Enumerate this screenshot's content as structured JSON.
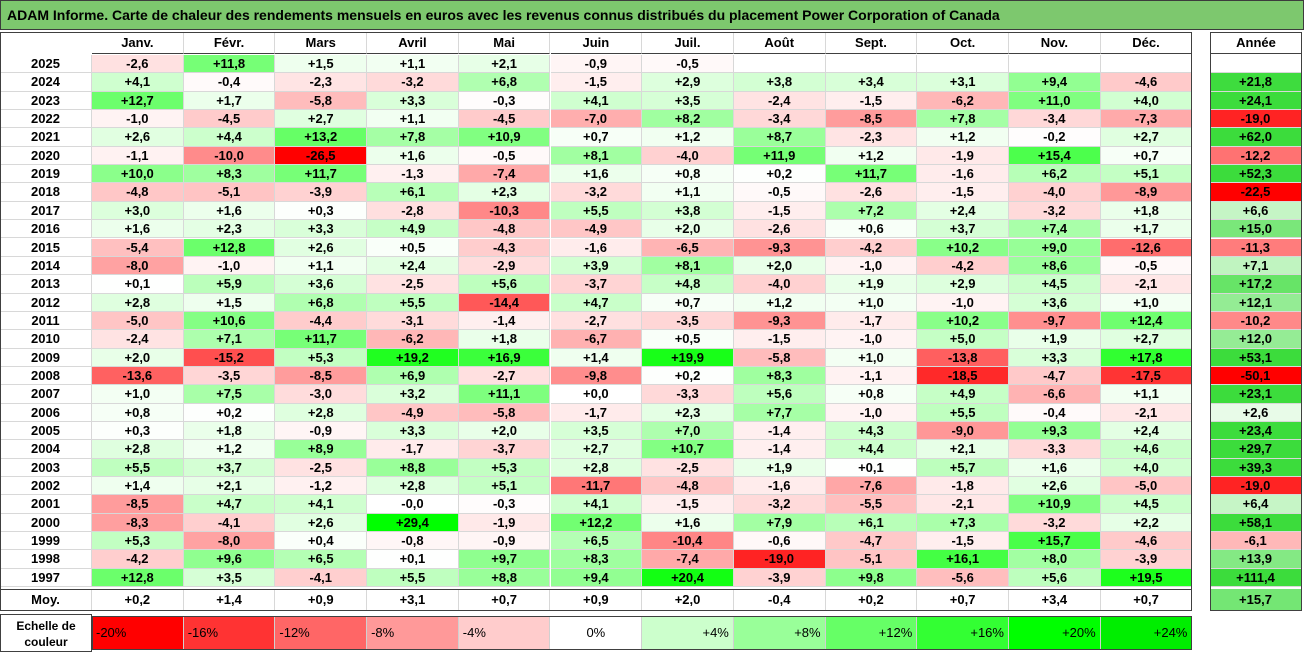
{
  "title": "ADAM Informe. Carte de chaleur des rendements mensuels en euros avec les revenus connus distribués du placement Power Corporation of Canada",
  "colors": {
    "title_bg": "#7dc86e",
    "max_pos": "#00ff00",
    "max_neg": "#ff0000",
    "neutral": "#ffffff"
  },
  "chart_data": {
    "type": "heatmap",
    "title": "ADAM Informe. Carte de chaleur des rendements mensuels en euros avec les revenus connus distribués du placement Power Corporation of Canada",
    "columns": [
      "Janv.",
      "Févr.",
      "Mars",
      "Avril",
      "Mai",
      "Juin",
      "Juil.",
      "Août",
      "Sept.",
      "Oct.",
      "Nov.",
      "Déc."
    ],
    "annual_column": "Année",
    "rows": [
      {
        "year": "2025",
        "values": [
          "-2,6",
          "+11,8",
          "+1,5",
          "+1,1",
          "+2,1",
          "-0,9",
          "-0,5",
          "",
          "",
          "",
          "",
          ""
        ],
        "annual": ""
      },
      {
        "year": "2024",
        "values": [
          "+4,1",
          "-0,4",
          "-2,3",
          "-3,2",
          "+6,8",
          "-1,5",
          "+2,9",
          "+3,8",
          "+3,4",
          "+3,1",
          "+9,4",
          "-4,6"
        ],
        "annual": "+21,8"
      },
      {
        "year": "2023",
        "values": [
          "+12,7",
          "+1,7",
          "-5,8",
          "+3,3",
          "-0,3",
          "+4,1",
          "+3,5",
          "-2,4",
          "-1,5",
          "-6,2",
          "+11,0",
          "+4,0"
        ],
        "annual": "+24,1"
      },
      {
        "year": "2022",
        "values": [
          "-1,0",
          "-4,5",
          "+2,7",
          "+1,1",
          "-4,5",
          "-7,0",
          "+8,2",
          "-3,4",
          "-8,5",
          "+7,8",
          "-3,4",
          "-7,3"
        ],
        "annual": "-19,0"
      },
      {
        "year": "2021",
        "values": [
          "+2,6",
          "+4,4",
          "+13,2",
          "+7,8",
          "+10,9",
          "+0,7",
          "+1,2",
          "+8,7",
          "-2,3",
          "+1,2",
          "-0,2",
          "+2,7"
        ],
        "annual": "+62,0"
      },
      {
        "year": "2020",
        "values": [
          "-1,1",
          "-10,0",
          "-26,5",
          "+1,6",
          "-0,5",
          "+8,1",
          "-4,0",
          "+11,9",
          "+1,2",
          "-1,9",
          "+15,4",
          "+0,7"
        ],
        "annual": "-12,2"
      },
      {
        "year": "2019",
        "values": [
          "+10,0",
          "+8,3",
          "+11,7",
          "-1,3",
          "-7,4",
          "+1,6",
          "+0,8",
          "+0,2",
          "+11,7",
          "-1,6",
          "+6,2",
          "+5,1"
        ],
        "annual": "+52,3"
      },
      {
        "year": "2018",
        "values": [
          "-4,8",
          "-5,1",
          "-3,9",
          "+6,1",
          "+2,3",
          "-3,2",
          "+1,1",
          "-0,5",
          "-2,6",
          "-1,5",
          "-4,0",
          "-8,9"
        ],
        "annual": "-22,5"
      },
      {
        "year": "2017",
        "values": [
          "+3,0",
          "+1,6",
          "+0,3",
          "-2,8",
          "-10,3",
          "+5,5",
          "+3,8",
          "-1,5",
          "+7,2",
          "+2,4",
          "-3,2",
          "+1,8"
        ],
        "annual": "+6,6"
      },
      {
        "year": "2016",
        "values": [
          "+1,6",
          "+2,3",
          "+3,3",
          "+4,9",
          "-4,8",
          "-4,9",
          "+2,0",
          "-2,6",
          "+0,6",
          "+3,7",
          "+7,4",
          "+1,7"
        ],
        "annual": "+15,0"
      },
      {
        "year": "2015",
        "values": [
          "-5,4",
          "+12,8",
          "+2,6",
          "+0,5",
          "-4,3",
          "-1,6",
          "-6,5",
          "-9,3",
          "-4,2",
          "+10,2",
          "+9,0",
          "-12,6"
        ],
        "annual": "-11,3"
      },
      {
        "year": "2014",
        "values": [
          "-8,0",
          "-1,0",
          "+1,1",
          "+2,4",
          "-2,9",
          "+3,9",
          "+8,1",
          "+2,0",
          "-1,0",
          "-4,2",
          "+8,6",
          "-0,5"
        ],
        "annual": "+7,1"
      },
      {
        "year": "2013",
        "values": [
          "+0,1",
          "+5,9",
          "+3,6",
          "-2,5",
          "+5,6",
          "-3,7",
          "+4,8",
          "-4,0",
          "+1,9",
          "+2,9",
          "+4,5",
          "-2,1"
        ],
        "annual": "+17,2"
      },
      {
        "year": "2012",
        "values": [
          "+2,8",
          "+1,5",
          "+6,8",
          "+5,5",
          "-14,4",
          "+4,7",
          "+0,7",
          "+1,2",
          "+1,0",
          "-1,0",
          "+3,6",
          "+1,0"
        ],
        "annual": "+12,1"
      },
      {
        "year": "2011",
        "values": [
          "-5,0",
          "+10,6",
          "-4,4",
          "-3,1",
          "-1,4",
          "-2,7",
          "-3,5",
          "-9,3",
          "-1,7",
          "+10,2",
          "-9,7",
          "+12,4"
        ],
        "annual": "-10,2"
      },
      {
        "year": "2010",
        "values": [
          "-2,4",
          "+7,1",
          "+11,7",
          "-6,2",
          "+1,8",
          "-6,7",
          "+0,5",
          "-1,5",
          "-1,0",
          "+5,0",
          "+1,9",
          "+2,7"
        ],
        "annual": "+12,0"
      },
      {
        "year": "2009",
        "values": [
          "+2,0",
          "-15,2",
          "+5,3",
          "+19,2",
          "+16,9",
          "+1,4",
          "+19,9",
          "-5,8",
          "+1,0",
          "-13,8",
          "+3,3",
          "+17,8"
        ],
        "annual": "+53,1"
      },
      {
        "year": "2008",
        "values": [
          "-13,6",
          "-3,5",
          "-8,5",
          "+6,9",
          "-2,7",
          "-9,8",
          "+0,2",
          "+8,3",
          "-1,1",
          "-18,5",
          "-4,7",
          "-17,5"
        ],
        "annual": "-50,1"
      },
      {
        "year": "2007",
        "values": [
          "+1,0",
          "+7,5",
          "-3,0",
          "+3,2",
          "+11,1",
          "+0,0",
          "-3,3",
          "+5,6",
          "+0,8",
          "+4,9",
          "-6,6",
          "+1,1"
        ],
        "annual": "+23,1"
      },
      {
        "year": "2006",
        "values": [
          "+0,8",
          "+0,2",
          "+2,8",
          "-4,9",
          "-5,8",
          "-1,7",
          "+2,3",
          "+7,7",
          "-1,0",
          "+5,5",
          "-0,4",
          "-2,1"
        ],
        "annual": "+2,6"
      },
      {
        "year": "2005",
        "values": [
          "+0,3",
          "+1,8",
          "-0,9",
          "+3,3",
          "+2,0",
          "+3,5",
          "+7,0",
          "-1,4",
          "+4,3",
          "-9,0",
          "+9,3",
          "+2,4"
        ],
        "annual": "+23,4"
      },
      {
        "year": "2004",
        "values": [
          "+2,8",
          "+1,2",
          "+8,9",
          "-1,7",
          "-3,7",
          "+2,7",
          "+10,7",
          "-1,4",
          "+4,4",
          "+2,1",
          "-3,3",
          "+4,6"
        ],
        "annual": "+29,7"
      },
      {
        "year": "2003",
        "values": [
          "+5,5",
          "+3,7",
          "-2,5",
          "+8,8",
          "+5,3",
          "+2,8",
          "-2,5",
          "+1,9",
          "+0,1",
          "+5,7",
          "+1,6",
          "+4,0"
        ],
        "annual": "+39,3"
      },
      {
        "year": "2002",
        "values": [
          "+1,4",
          "+2,1",
          "-1,2",
          "+2,8",
          "+5,1",
          "-11,7",
          "-4,8",
          "-1,6",
          "-7,6",
          "-1,8",
          "+2,6",
          "-5,0"
        ],
        "annual": "-19,0"
      },
      {
        "year": "2001",
        "values": [
          "-8,5",
          "+4,7",
          "+4,1",
          "-0,0",
          "-0,3",
          "+4,1",
          "-1,5",
          "-3,2",
          "-5,5",
          "-2,1",
          "+10,9",
          "+4,5"
        ],
        "annual": "+6,4"
      },
      {
        "year": "2000",
        "values": [
          "-8,3",
          "-4,1",
          "+2,6",
          "+29,4",
          "-1,9",
          "+12,2",
          "+1,6",
          "+7,9",
          "+6,1",
          "+7,3",
          "-3,2",
          "+2,2"
        ],
        "annual": "+58,1"
      },
      {
        "year": "1999",
        "values": [
          "+5,3",
          "-8,0",
          "+0,4",
          "-0,8",
          "-0,9",
          "+6,5",
          "-10,4",
          "-0,6",
          "-4,7",
          "-1,5",
          "+15,7",
          "-4,6"
        ],
        "annual": "-6,1"
      },
      {
        "year": "1998",
        "values": [
          "-4,2",
          "+9,6",
          "+6,5",
          "+0,1",
          "+9,7",
          "+8,3",
          "-7,4",
          "-19,0",
          "-5,1",
          "+16,1",
          "+8,0",
          "-3,9"
        ],
        "annual": "+13,9"
      },
      {
        "year": "1997",
        "values": [
          "+12,8",
          "+3,5",
          "-4,1",
          "+5,5",
          "+8,8",
          "+9,4",
          "+20,4",
          "-3,9",
          "+9,8",
          "-5,6",
          "+5,6",
          "+19,5"
        ],
        "annual": "+111,4"
      }
    ],
    "average": {
      "label": "Moy.",
      "values": [
        "+0,2",
        "+1,4",
        "+0,9",
        "+3,1",
        "+0,7",
        "+0,9",
        "+2,0",
        "-0,4",
        "+0,2",
        "+0,7",
        "+3,4",
        "+0,7"
      ],
      "annual": "+15,7"
    },
    "color_scale": {
      "label": "Echelle de couleur",
      "stops": [
        {
          "label": "-20%",
          "color": "#ff0000"
        },
        {
          "label": "-16%",
          "color": "#ff3333"
        },
        {
          "label": "-12%",
          "color": "#ff6666"
        },
        {
          "label": "-8%",
          "color": "#ff9999"
        },
        {
          "label": "-4%",
          "color": "#ffcccc"
        },
        {
          "label": "0%",
          "color": "#ffffff"
        },
        {
          "label": "+4%",
          "color": "#ccffcc"
        },
        {
          "label": "+8%",
          "color": "#99ff99"
        },
        {
          "label": "+12%",
          "color": "#66ff66"
        },
        {
          "label": "+16%",
          "color": "#33ff33"
        },
        {
          "label": "+20%",
          "color": "#00ff00"
        },
        {
          "label": "+24%",
          "color": "#00ee00"
        }
      ]
    }
  }
}
